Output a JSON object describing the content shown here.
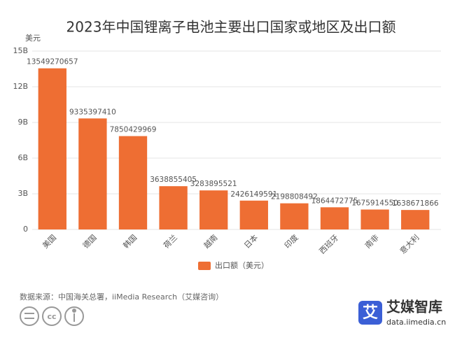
{
  "chart_data": {
    "type": "bar",
    "title": "2023年中国锂离子电池主要出口国家或地区及出口额",
    "y_unit": "美元",
    "categories": [
      "美国",
      "德国",
      "韩国",
      "荷兰",
      "越南",
      "日本",
      "印度",
      "西班牙",
      "南非",
      "意大利"
    ],
    "series": [
      {
        "name": "出口额（美元）",
        "color": "#ee6e33",
        "values": [
          13549270657,
          9335397410,
          7850429969,
          3638855405,
          3283895521,
          2426149591,
          2198808492,
          1864472775,
          1675914550,
          1638671866
        ]
      }
    ],
    "ylim": [
      0,
      15000000000
    ],
    "yticks": [
      0,
      {
        "value": 3000000000,
        "label": "3B"
      },
      {
        "value": 6000000000,
        "label": "6B"
      },
      {
        "value": 9000000000,
        "label": "9B"
      },
      {
        "value": 12000000000,
        "label": "12B"
      },
      {
        "value": 15000000000,
        "label": "15B"
      }
    ],
    "grid": true,
    "source": "数据来源：中国海关总署，iiMedia Research（艾媒咨询）",
    "brand": {
      "icon": "艾",
      "name": "艾媒智库",
      "url": "data.iimedia.cn"
    }
  }
}
